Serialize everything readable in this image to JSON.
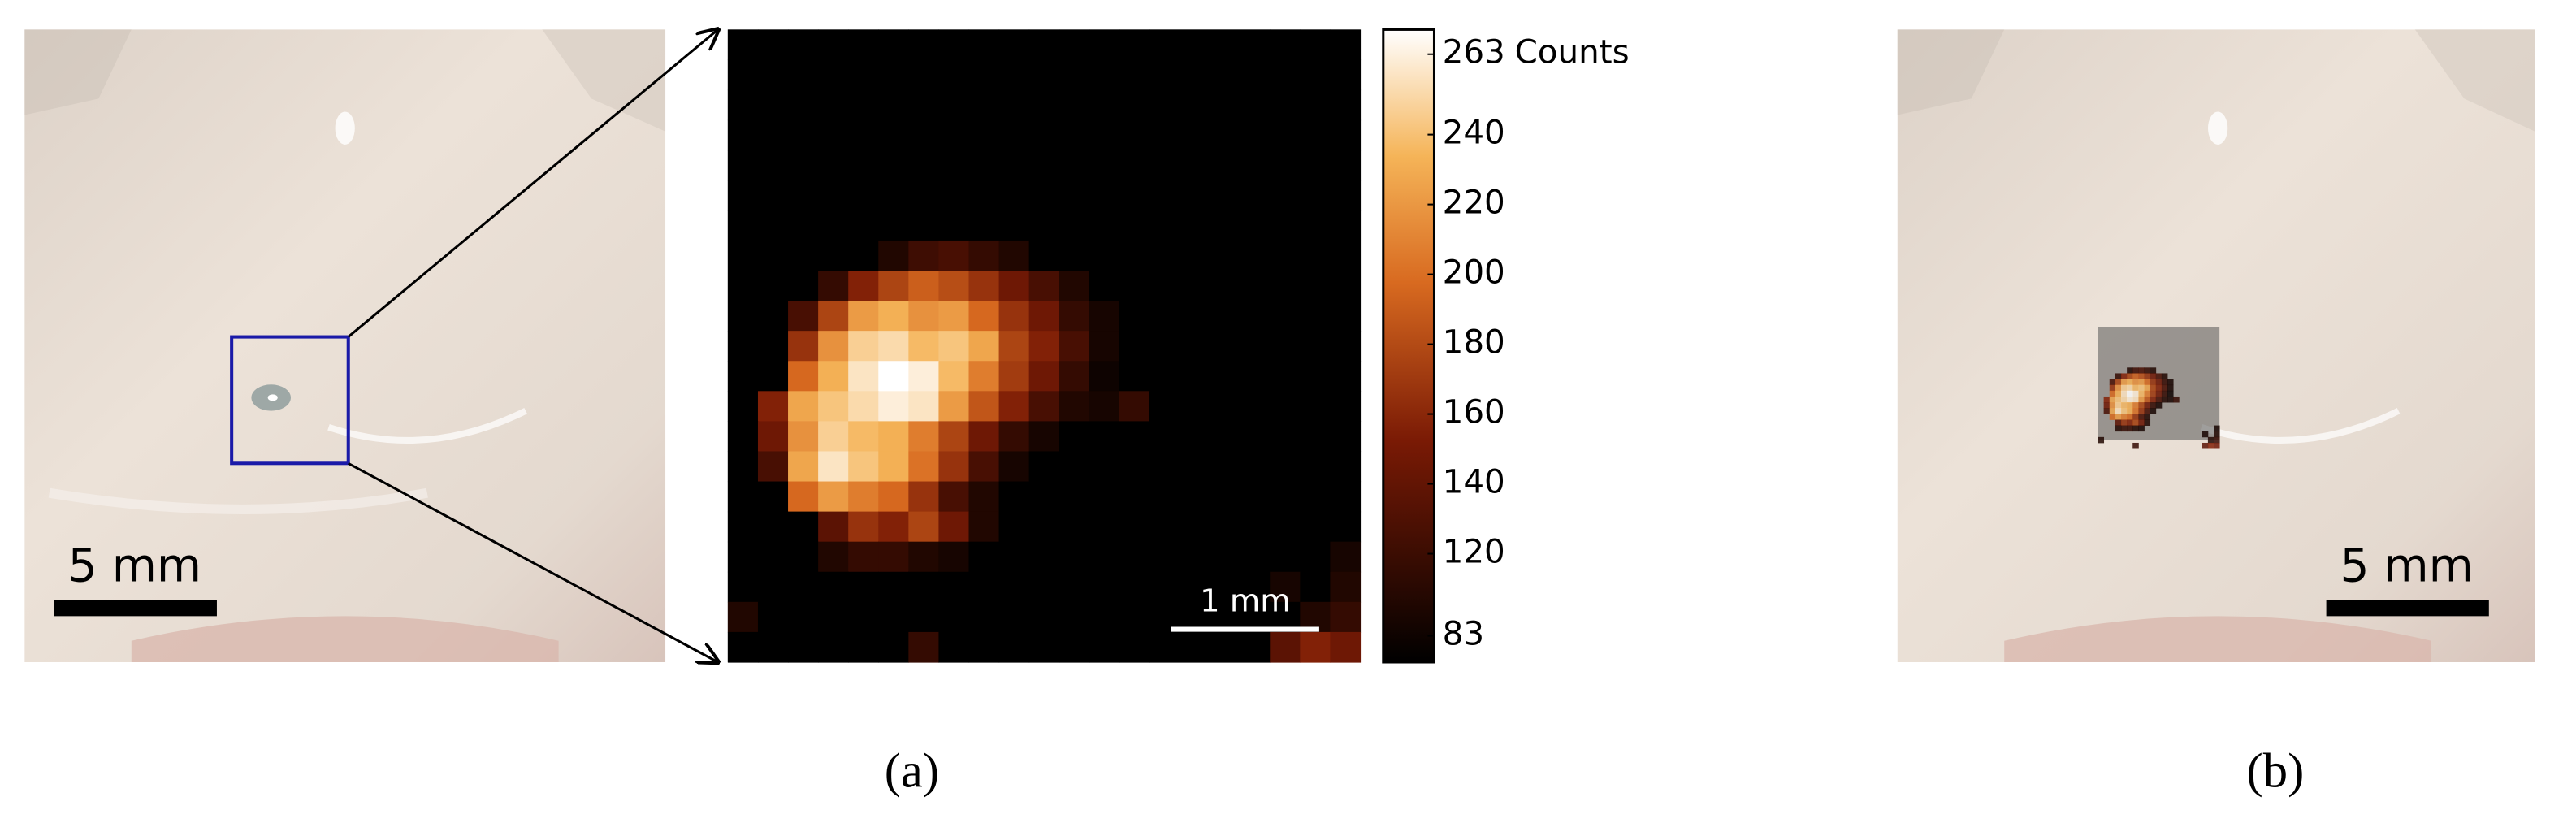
{
  "panel_a": {
    "photo_scale_label": "5 mm",
    "map_scale_label": "1 mm",
    "caption": "(a)",
    "colorbar": {
      "unit": "Counts",
      "min": 83,
      "max": 263,
      "ticks": [
        263,
        240,
        220,
        200,
        180,
        160,
        140,
        120,
        83
      ]
    },
    "counts": [
      [
        83,
        83,
        83,
        83,
        83,
        83,
        83,
        83,
        83,
        83,
        83,
        83,
        83,
        83,
        83,
        83,
        83,
        83,
        83,
        83,
        83
      ],
      [
        83,
        83,
        83,
        83,
        83,
        83,
        83,
        83,
        83,
        83,
        83,
        83,
        83,
        83,
        83,
        83,
        83,
        83,
        83,
        83,
        83
      ],
      [
        83,
        83,
        83,
        83,
        83,
        83,
        83,
        83,
        83,
        83,
        83,
        83,
        83,
        83,
        83,
        83,
        83,
        83,
        83,
        83,
        83
      ],
      [
        83,
        83,
        83,
        83,
        83,
        83,
        83,
        83,
        83,
        83,
        83,
        83,
        83,
        83,
        83,
        83,
        83,
        83,
        83,
        83,
        83
      ],
      [
        83,
        83,
        83,
        83,
        83,
        83,
        83,
        83,
        83,
        83,
        83,
        83,
        83,
        83,
        83,
        83,
        83,
        83,
        83,
        83,
        83
      ],
      [
        83,
        83,
        83,
        83,
        83,
        83,
        83,
        83,
        83,
        83,
        83,
        83,
        83,
        83,
        83,
        83,
        83,
        83,
        83,
        83,
        83
      ],
      [
        83,
        83,
        83,
        83,
        83,
        83,
        83,
        83,
        83,
        83,
        83,
        83,
        83,
        83,
        83,
        83,
        83,
        83,
        83,
        83,
        83
      ],
      [
        83,
        83,
        83,
        83,
        83,
        100,
        115,
        120,
        110,
        100,
        83,
        83,
        83,
        83,
        83,
        83,
        83,
        83,
        83,
        83,
        83
      ],
      [
        83,
        83,
        83,
        110,
        150,
        170,
        185,
        175,
        160,
        140,
        120,
        100,
        83,
        83,
        83,
        83,
        83,
        83,
        83,
        83,
        83
      ],
      [
        83,
        83,
        120,
        170,
        215,
        225,
        210,
        215,
        190,
        160,
        140,
        110,
        95,
        83,
        83,
        83,
        83,
        83,
        83,
        83,
        83
      ],
      [
        83,
        83,
        160,
        210,
        240,
        245,
        230,
        235,
        220,
        170,
        150,
        120,
        95,
        83,
        83,
        83,
        83,
        83,
        83,
        83,
        83
      ],
      [
        83,
        83,
        190,
        225,
        250,
        263,
        255,
        230,
        200,
        165,
        140,
        110,
        90,
        83,
        83,
        83,
        83,
        83,
        83,
        83,
        83
      ],
      [
        83,
        150,
        220,
        235,
        245,
        255,
        250,
        215,
        180,
        150,
        120,
        100,
        95,
        110,
        83,
        83,
        83,
        83,
        83,
        83,
        83
      ],
      [
        83,
        140,
        210,
        240,
        230,
        225,
        200,
        170,
        140,
        110,
        95,
        83,
        83,
        83,
        83,
        83,
        83,
        83,
        83,
        83,
        83
      ],
      [
        83,
        120,
        220,
        250,
        235,
        225,
        195,
        160,
        120,
        95,
        83,
        83,
        83,
        83,
        83,
        83,
        83,
        83,
        83,
        83,
        83
      ],
      [
        83,
        83,
        190,
        215,
        200,
        190,
        160,
        120,
        100,
        83,
        83,
        83,
        83,
        83,
        83,
        83,
        83,
        83,
        83,
        83,
        83
      ],
      [
        83,
        83,
        83,
        130,
        160,
        150,
        170,
        140,
        100,
        83,
        83,
        83,
        83,
        83,
        83,
        83,
        83,
        83,
        83,
        83,
        83
      ],
      [
        83,
        83,
        83,
        100,
        110,
        110,
        100,
        95,
        83,
        83,
        83,
        83,
        83,
        83,
        83,
        83,
        83,
        83,
        83,
        83,
        95
      ],
      [
        83,
        83,
        83,
        83,
        83,
        83,
        83,
        83,
        83,
        83,
        83,
        83,
        83,
        83,
        83,
        83,
        83,
        83,
        95,
        83,
        100
      ],
      [
        100,
        83,
        83,
        83,
        83,
        83,
        83,
        83,
        83,
        83,
        83,
        83,
        83,
        83,
        83,
        83,
        83,
        83,
        83,
        100,
        110
      ],
      [
        83,
        83,
        83,
        83,
        83,
        83,
        110,
        83,
        83,
        83,
        83,
        83,
        83,
        83,
        83,
        83,
        83,
        83,
        130,
        150,
        140
      ]
    ]
  },
  "panel_b": {
    "photo_scale_label": "5 mm",
    "caption": "(b)"
  }
}
